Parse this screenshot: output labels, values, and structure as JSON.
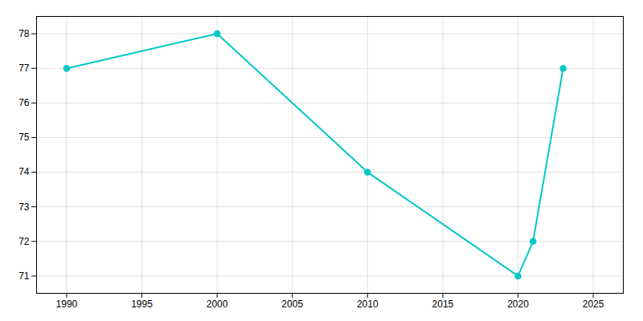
{
  "chart_data": {
    "type": "line",
    "x": [
      1990,
      2000,
      2010,
      2020,
      2021,
      2023
    ],
    "values": [
      77,
      78,
      74,
      71,
      72,
      77
    ],
    "color": "#00C8C8",
    "marker": "circle",
    "xlim": [
      1988,
      2027
    ],
    "ylim": [
      70.5,
      78.5
    ],
    "xticks": [
      1990,
      1995,
      2000,
      2005,
      2010,
      2015,
      2020,
      2025
    ],
    "yticks": [
      71,
      72,
      73,
      74,
      75,
      76,
      77,
      78
    ],
    "grid": true
  }
}
